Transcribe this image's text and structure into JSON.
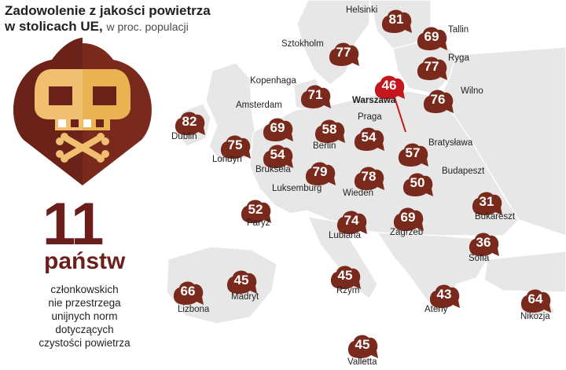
{
  "title_line1": "Zadowolenie z jakości powietrza",
  "title_line2": "w stolicach UE,",
  "subtitle": "w proc. populacji",
  "count": "11",
  "count_unit": "państw",
  "description": [
    "członkowskich",
    "nie przestrzega",
    "unijnych norm",
    "dotyczących",
    "czystości powietrza"
  ],
  "colors": {
    "marker": "#7a2a1c",
    "highlight": "#c4161c",
    "skull": "#f0c070",
    "map": "#e7e7e7"
  },
  "cities": [
    {
      "name": "Helsinki",
      "value": "81"
    },
    {
      "name": "Tallin",
      "value": "69"
    },
    {
      "name": "Sztokholm",
      "value": "77"
    },
    {
      "name": "Ryga",
      "value": "77"
    },
    {
      "name": "Warszawa",
      "value": "46"
    },
    {
      "name": "Kopenhaga",
      "value": "71"
    },
    {
      "name": "Wilno",
      "value": "76"
    },
    {
      "name": "Dublin",
      "value": "82"
    },
    {
      "name": "Amsterdam",
      "value": "69"
    },
    {
      "name": "Berlin",
      "value": "58"
    },
    {
      "name": "Praga",
      "value": "54"
    },
    {
      "name": "Londyn",
      "value": "75"
    },
    {
      "name": "Bruksela",
      "value": "54"
    },
    {
      "name": "Bratysława",
      "value": "57"
    },
    {
      "name": "Luksemburg",
      "value": "79"
    },
    {
      "name": "Wiedeń",
      "value": "78"
    },
    {
      "name": "Budapeszt",
      "value": "50"
    },
    {
      "name": "Paryż",
      "value": "52"
    },
    {
      "name": "Bukareszt",
      "value": "31"
    },
    {
      "name": "Lublana",
      "value": "74"
    },
    {
      "name": "Zagrzeb",
      "value": "69"
    },
    {
      "name": "Sofia",
      "value": "36"
    },
    {
      "name": "Madryt",
      "value": "45"
    },
    {
      "name": "Rzym",
      "value": "45"
    },
    {
      "name": "Lizbona",
      "value": "66"
    },
    {
      "name": "Ateny",
      "value": "43"
    },
    {
      "name": "Nikozja",
      "value": "64"
    },
    {
      "name": "Valletta",
      "value": "45"
    }
  ]
}
